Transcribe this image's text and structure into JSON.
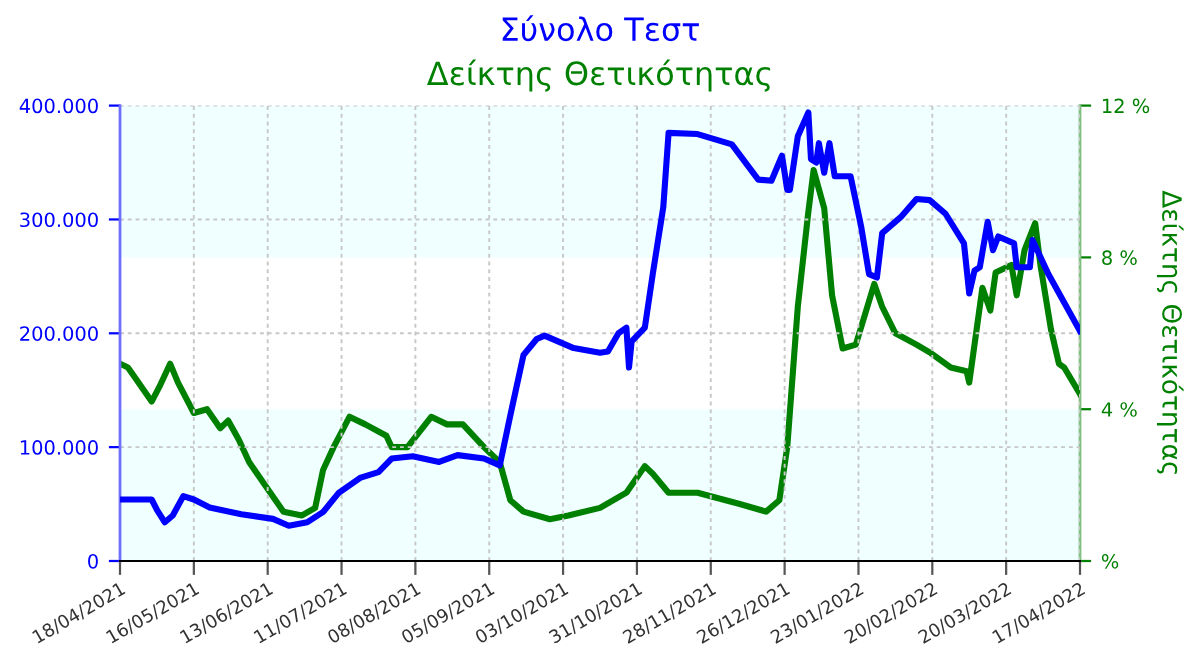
{
  "chart_data": {
    "type": "line",
    "title": "Σύνολο Τεστ",
    "subtitle": "Δείκτης Θετικότητας",
    "y2label": "Δείκτης Θετικότητας",
    "xlim": [
      "2021-04-18",
      "2022-04-17"
    ],
    "xticks": [
      {
        "value": "2021-04-18",
        "label": "18/04/2021"
      },
      {
        "value": "2021-05-16",
        "label": "16/05/2021"
      },
      {
        "value": "2021-06-13",
        "label": "13/06/2021"
      },
      {
        "value": "2021-07-11",
        "label": "11/07/2021"
      },
      {
        "value": "2021-08-08",
        "label": "08/08/2021"
      },
      {
        "value": "2021-09-05",
        "label": "05/09/2021"
      },
      {
        "value": "2021-10-03",
        "label": "03/10/2021"
      },
      {
        "value": "2021-10-31",
        "label": "31/10/2021"
      },
      {
        "value": "2021-11-28",
        "label": "28/11/2021"
      },
      {
        "value": "2021-12-26",
        "label": "26/12/2021"
      },
      {
        "value": "2022-01-23",
        "label": "23/01/2022"
      },
      {
        "value": "2022-02-20",
        "label": "20/02/2022"
      },
      {
        "value": "2022-03-20",
        "label": "20/03/2022"
      },
      {
        "value": "2022-04-17",
        "label": "17/04/2022"
      }
    ],
    "ylim": [
      0,
      400000
    ],
    "yticks": [
      0,
      {
        "value": 100000,
        "label": "100.000"
      },
      {
        "value": 200000,
        "label": "200.000"
      },
      {
        "value": 300000,
        "label": "300.000"
      },
      {
        "value": 400000,
        "label": "400.000"
      }
    ],
    "y2lim": [
      0,
      12
    ],
    "y2ticks": [
      {
        "value": 0,
        "label": "%"
      },
      {
        "value": 4,
        "label": "4 %"
      },
      {
        "value": 8,
        "label": "8 %"
      },
      {
        "value": 12,
        "label": "12 %"
      }
    ],
    "grid": true,
    "bands": [
      {
        "axis": "y2",
        "from": 0,
        "to": 4,
        "color": "#f0ffff"
      },
      {
        "axis": "y2",
        "from": 8,
        "to": 12,
        "color": "#f0ffff"
      }
    ],
    "series": [
      {
        "color": "#0000ff",
        "x": [
          "2021-04-18",
          "2021-04-30",
          "2021-05-02",
          "2021-05-05",
          "2021-05-08",
          "2021-05-12",
          "2021-05-16",
          "2021-05-22",
          "2021-06-03",
          "2021-06-15",
          "2021-06-21",
          "2021-06-28",
          "2021-07-04",
          "2021-07-10",
          "2021-07-18",
          "2021-07-25",
          "2021-07-30",
          "2021-08-07",
          "2021-08-17",
          "2021-08-24",
          "2021-09-03",
          "2021-09-09",
          "2021-09-13",
          "2021-09-18",
          "2021-09-23",
          "2021-09-26",
          "2021-10-07",
          "2021-10-17",
          "2021-10-20",
          "2021-10-24",
          "2021-10-27",
          "2021-10-28",
          "2021-10-29",
          "2021-11-03",
          "2021-11-06",
          "2021-11-10",
          "2021-11-12",
          "2021-11-23",
          "2021-12-06",
          "2021-12-16",
          "2021-12-21",
          "2021-12-25",
          "2021-12-27",
          "2021-12-28",
          "2021-12-31",
          "2022-01-04",
          "2022-01-05",
          "2022-01-07",
          "2022-01-08",
          "2022-01-10",
          "2022-01-12",
          "2022-01-14",
          "2022-01-20",
          "2022-01-24",
          "2022-01-27",
          "2022-01-30",
          "2022-02-01",
          "2022-02-08",
          "2022-02-14",
          "2022-02-19",
          "2022-02-25",
          "2022-03-04",
          "2022-03-06",
          "2022-03-08",
          "2022-03-10",
          "2022-03-13",
          "2022-03-15",
          "2022-03-17",
          "2022-03-23",
          "2022-03-24",
          "2022-03-29",
          "2022-03-30",
          "2022-04-05",
          "2022-04-17"
        ],
        "values": [
          54000,
          54000,
          45000,
          34000,
          40000,
          57000,
          54000,
          47000,
          41000,
          37000,
          31000,
          34000,
          43000,
          60000,
          73000,
          78000,
          90000,
          92000,
          87000,
          93000,
          90000,
          84000,
          128000,
          181000,
          195000,
          198000,
          187000,
          183000,
          184000,
          200000,
          205000,
          170000,
          193000,
          205000,
          252000,
          311000,
          376000,
          375000,
          366000,
          335000,
          334000,
          356000,
          326000,
          326000,
          373000,
          394000,
          353000,
          350000,
          367000,
          341000,
          367000,
          338000,
          338000,
          294000,
          252000,
          249000,
          288000,
          302000,
          318000,
          317000,
          305000,
          279000,
          235000,
          255000,
          258000,
          298000,
          273000,
          285000,
          279000,
          258000,
          258000,
          282000,
          252000,
          202000
        ]
      },
      {
        "color": "#008000",
        "axis": "y2",
        "x": [
          "2021-04-18",
          "2021-04-21",
          "2021-04-24",
          "2021-04-30",
          "2021-05-03",
          "2021-05-07",
          "2021-05-10",
          "2021-05-16",
          "2021-05-21",
          "2021-05-26",
          "2021-05-29",
          "2021-06-02",
          "2021-06-06",
          "2021-06-13",
          "2021-06-19",
          "2021-06-26",
          "2021-07-01",
          "2021-07-04",
          "2021-07-08",
          "2021-07-14",
          "2021-07-20",
          "2021-07-28",
          "2021-07-30",
          "2021-08-05",
          "2021-08-14",
          "2021-08-20",
          "2021-08-26",
          "2021-09-03",
          "2021-09-09",
          "2021-09-13",
          "2021-09-18",
          "2021-09-28",
          "2021-10-05",
          "2021-10-17",
          "2021-10-27",
          "2021-11-03",
          "2021-11-06",
          "2021-11-12",
          "2021-11-23",
          "2021-12-09",
          "2021-12-19",
          "2021-12-24",
          "2021-12-27",
          "2021-12-31",
          "2022-01-04",
          "2022-01-06",
          "2022-01-10",
          "2022-01-13",
          "2022-01-17",
          "2022-01-22",
          "2022-01-29",
          "2022-02-01",
          "2022-02-06",
          "2022-02-14",
          "2022-02-19",
          "2022-02-27",
          "2022-03-05",
          "2022-03-06",
          "2022-03-09",
          "2022-03-11",
          "2022-03-14",
          "2022-03-16",
          "2022-03-22",
          "2022-03-24",
          "2022-03-27",
          "2022-03-31",
          "2022-04-02",
          "2022-04-06",
          "2022-04-09",
          "2022-04-11",
          "2022-04-17"
        ],
        "values": [
          5.2,
          5.1,
          4.8,
          4.2,
          4.6,
          5.2,
          4.7,
          3.9,
          4.0,
          3.5,
          3.7,
          3.2,
          2.6,
          1.9,
          1.3,
          1.2,
          1.4,
          2.4,
          3.0,
          3.8,
          3.6,
          3.3,
          3.0,
          3.0,
          3.8,
          3.6,
          3.6,
          3.0,
          2.6,
          1.6,
          1.3,
          1.1,
          1.2,
          1.4,
          1.8,
          2.5,
          2.3,
          1.8,
          1.8,
          1.5,
          1.3,
          1.6,
          3.0,
          6.7,
          9.2,
          10.3,
          9.3,
          7.0,
          5.6,
          5.7,
          7.3,
          6.7,
          6.0,
          5.7,
          5.5,
          5.1,
          5.0,
          4.7,
          6.2,
          7.2,
          6.6,
          7.6,
          7.8,
          7.0,
          8.2,
          8.9,
          7.8,
          6.1,
          5.2,
          5.1,
          4.4
        ]
      }
    ]
  }
}
